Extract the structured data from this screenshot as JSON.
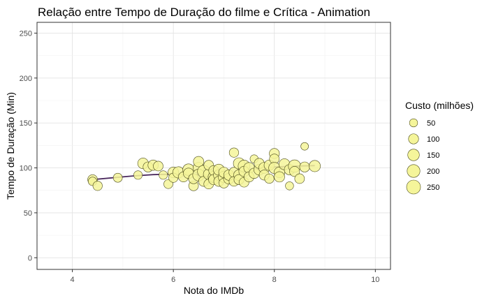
{
  "chart_data": {
    "type": "scatter",
    "title": "Relação entre Tempo de Duração do filme e Crítica - Animation",
    "xlabel": "Nota do IMDb",
    "ylabel": "Tempo de Duração (Min)",
    "xlim": [
      3.3,
      10.3
    ],
    "ylim": [
      -13,
      262
    ],
    "x_ticks": [
      4,
      6,
      8,
      10
    ],
    "y_ticks": [
      0,
      50,
      100,
      150,
      200,
      250
    ],
    "grid": true,
    "legend": {
      "title": "Custo (milhões)",
      "position": "right",
      "sizes": [
        50,
        100,
        150,
        200,
        250
      ]
    },
    "colors": {
      "point_fill": "#f5f59a",
      "point_stroke": "#4a4a1a",
      "trend": "#4b2a5e"
    },
    "points": [
      {
        "x": 4.4,
        "y": 87,
        "size": 90
      },
      {
        "x": 4.4,
        "y": 85,
        "size": 60
      },
      {
        "x": 4.5,
        "y": 80,
        "size": 80
      },
      {
        "x": 4.9,
        "y": 89,
        "size": 70
      },
      {
        "x": 5.3,
        "y": 92,
        "size": 60
      },
      {
        "x": 5.4,
        "y": 105,
        "size": 120
      },
      {
        "x": 5.5,
        "y": 101,
        "size": 100
      },
      {
        "x": 5.6,
        "y": 103,
        "size": 110
      },
      {
        "x": 5.7,
        "y": 102,
        "size": 90
      },
      {
        "x": 5.8,
        "y": 92,
        "size": 60
      },
      {
        "x": 5.9,
        "y": 82,
        "size": 70
      },
      {
        "x": 6.0,
        "y": 95,
        "size": 120
      },
      {
        "x": 6.0,
        "y": 89,
        "size": 80
      },
      {
        "x": 6.1,
        "y": 95,
        "size": 140
      },
      {
        "x": 6.2,
        "y": 90,
        "size": 100
      },
      {
        "x": 6.3,
        "y": 98,
        "size": 150
      },
      {
        "x": 6.3,
        "y": 94,
        "size": 110
      },
      {
        "x": 6.4,
        "y": 80,
        "size": 90
      },
      {
        "x": 6.4,
        "y": 88,
        "size": 100
      },
      {
        "x": 6.5,
        "y": 100,
        "size": 130
      },
      {
        "x": 6.5,
        "y": 107,
        "size": 110
      },
      {
        "x": 6.5,
        "y": 92,
        "size": 160
      },
      {
        "x": 6.6,
        "y": 96,
        "size": 180
      },
      {
        "x": 6.6,
        "y": 85,
        "size": 100
      },
      {
        "x": 6.7,
        "y": 93,
        "size": 120
      },
      {
        "x": 6.7,
        "y": 103,
        "size": 90
      },
      {
        "x": 6.7,
        "y": 82,
        "size": 90
      },
      {
        "x": 6.8,
        "y": 90,
        "size": 140
      },
      {
        "x": 6.8,
        "y": 97,
        "size": 100
      },
      {
        "x": 6.8,
        "y": 87,
        "size": 110
      },
      {
        "x": 6.9,
        "y": 92,
        "size": 120
      },
      {
        "x": 6.9,
        "y": 98,
        "size": 130
      },
      {
        "x": 6.9,
        "y": 85,
        "size": 100
      },
      {
        "x": 7.0,
        "y": 90,
        "size": 140
      },
      {
        "x": 7.0,
        "y": 95,
        "size": 110
      },
      {
        "x": 7.0,
        "y": 83,
        "size": 90
      },
      {
        "x": 7.1,
        "y": 88,
        "size": 120
      },
      {
        "x": 7.1,
        "y": 92,
        "size": 110
      },
      {
        "x": 7.2,
        "y": 117,
        "size": 80
      },
      {
        "x": 7.2,
        "y": 95,
        "size": 100
      },
      {
        "x": 7.2,
        "y": 85,
        "size": 90
      },
      {
        "x": 7.3,
        "y": 105,
        "size": 140
      },
      {
        "x": 7.3,
        "y": 92,
        "size": 120
      },
      {
        "x": 7.3,
        "y": 87,
        "size": 100
      },
      {
        "x": 7.4,
        "y": 102,
        "size": 160
      },
      {
        "x": 7.4,
        "y": 96,
        "size": 110
      },
      {
        "x": 7.4,
        "y": 84,
        "size": 90
      },
      {
        "x": 7.5,
        "y": 100,
        "size": 120
      },
      {
        "x": 7.5,
        "y": 90,
        "size": 100
      },
      {
        "x": 7.6,
        "y": 94,
        "size": 110
      },
      {
        "x": 7.6,
        "y": 110,
        "size": 50
      },
      {
        "x": 7.7,
        "y": 98,
        "size": 120
      },
      {
        "x": 7.7,
        "y": 105,
        "size": 100
      },
      {
        "x": 7.8,
        "y": 100,
        "size": 130
      },
      {
        "x": 7.8,
        "y": 92,
        "size": 100
      },
      {
        "x": 7.9,
        "y": 103,
        "size": 110
      },
      {
        "x": 7.9,
        "y": 88,
        "size": 80
      },
      {
        "x": 8.0,
        "y": 116,
        "size": 100
      },
      {
        "x": 8.0,
        "y": 110,
        "size": 90
      },
      {
        "x": 8.0,
        "y": 100,
        "size": 140
      },
      {
        "x": 8.1,
        "y": 95,
        "size": 120
      },
      {
        "x": 8.1,
        "y": 90,
        "size": 110
      },
      {
        "x": 8.2,
        "y": 104,
        "size": 130
      },
      {
        "x": 8.3,
        "y": 98,
        "size": 110
      },
      {
        "x": 8.3,
        "y": 80,
        "size": 50
      },
      {
        "x": 8.4,
        "y": 102,
        "size": 180
      },
      {
        "x": 8.4,
        "y": 96,
        "size": 100
      },
      {
        "x": 8.5,
        "y": 88,
        "size": 90
      },
      {
        "x": 8.6,
        "y": 124,
        "size": 40
      },
      {
        "x": 8.6,
        "y": 101,
        "size": 100
      },
      {
        "x": 8.8,
        "y": 102,
        "size": 140
      }
    ],
    "trend": [
      {
        "x": 4.4,
        "y": 87
      },
      {
        "x": 4.8,
        "y": 89
      },
      {
        "x": 5.2,
        "y": 91
      },
      {
        "x": 5.6,
        "y": 92.5
      },
      {
        "x": 6.0,
        "y": 93
      },
      {
        "x": 6.4,
        "y": 92.5
      },
      {
        "x": 6.8,
        "y": 92
      },
      {
        "x": 7.2,
        "y": 94
      },
      {
        "x": 7.6,
        "y": 98
      },
      {
        "x": 8.0,
        "y": 101
      },
      {
        "x": 8.4,
        "y": 102
      },
      {
        "x": 8.8,
        "y": 102.5
      }
    ]
  }
}
